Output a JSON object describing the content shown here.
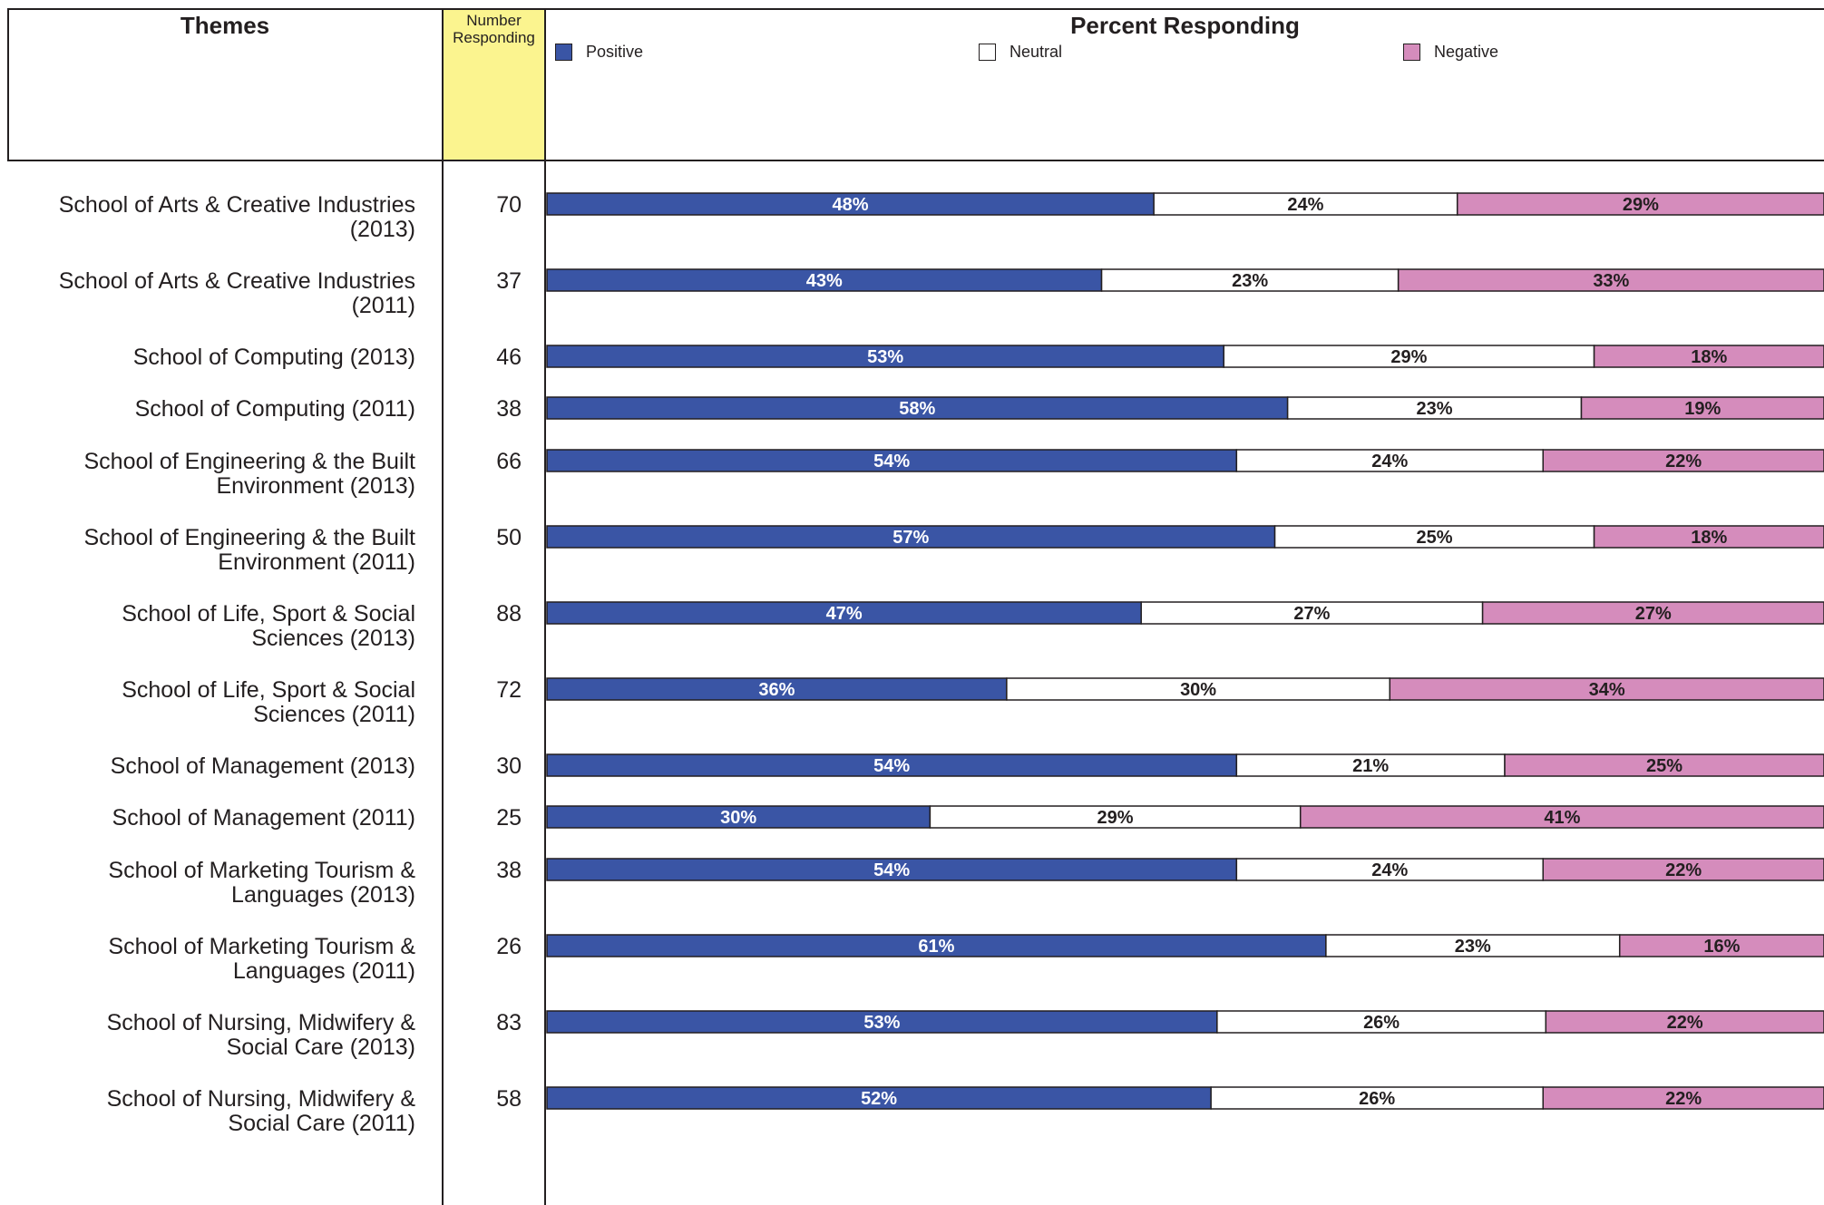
{
  "header": {
    "themes_label": "Themes",
    "number_label_line1": "Number",
    "number_label_line2": "Responding",
    "percent_label": "Percent Responding"
  },
  "legend": [
    {
      "label": "Positive",
      "color": "#3a55a5"
    },
    {
      "label": "Neutral",
      "color": "#ffffff"
    },
    {
      "label": "Negative",
      "color": "#d58cbc"
    }
  ],
  "chart_data": {
    "type": "bar",
    "orientation": "horizontal",
    "stacked": true,
    "title": "Percent Responding",
    "categories": [
      "School of Arts & Creative Industries (2013)",
      "School of Arts & Creative Industries (2011)",
      "School of Computing (2013)",
      "School of Computing (2011)",
      "School of Engineering & the Built Environment (2013)",
      "School of Engineering & the Built Environment (2011)",
      "School of Life, Sport & Social Sciences (2013)",
      "School of Life, Sport & Social Sciences (2011)",
      "School of Management (2013)",
      "School of Management (2011)",
      "School of Marketing Tourism & Languages (2013)",
      "School of Marketing Tourism & Languages (2011)",
      "School of Nursing, Midwifery & Social Care (2013)",
      "School of Nursing, Midwifery & Social Care (2011)"
    ],
    "number_responding": [
      70,
      37,
      46,
      38,
      66,
      50,
      88,
      72,
      30,
      25,
      38,
      26,
      83,
      58
    ],
    "series": [
      {
        "name": "Positive",
        "color": "#3a55a5",
        "values": [
          48,
          43,
          53,
          58,
          54,
          57,
          47,
          36,
          54,
          30,
          54,
          61,
          53,
          52
        ]
      },
      {
        "name": "Neutral",
        "color": "#ffffff",
        "values": [
          24,
          23,
          29,
          23,
          24,
          25,
          27,
          30,
          21,
          29,
          24,
          23,
          26,
          26
        ]
      },
      {
        "name": "Negative",
        "color": "#d58cbc",
        "values": [
          29,
          33,
          18,
          19,
          22,
          18,
          27,
          34,
          25,
          41,
          22,
          16,
          22,
          22
        ]
      }
    ],
    "xlim": [
      0,
      100
    ]
  },
  "rows": [
    {
      "label_line1": "School of Arts & Creative Industries",
      "label_line2": "(2013)",
      "count": "70"
    },
    {
      "label_line1": "School of Arts & Creative Industries",
      "label_line2": "(2011)",
      "count": "37"
    },
    {
      "label_line1": "School of Computing (2013)",
      "label_line2": "",
      "count": "46"
    },
    {
      "label_line1": "School of Computing (2011)",
      "label_line2": "",
      "count": "38"
    },
    {
      "label_line1": "School of Engineering & the Built",
      "label_line2": "Environment (2013)",
      "count": "66"
    },
    {
      "label_line1": "School of Engineering & the Built",
      "label_line2": "Environment (2011)",
      "count": "50"
    },
    {
      "label_line1": "School of Life, Sport & Social",
      "label_line2": "Sciences (2013)",
      "count": "88"
    },
    {
      "label_line1": "School of Life, Sport & Social",
      "label_line2": "Sciences (2011)",
      "count": "72"
    },
    {
      "label_line1": "School of Management (2013)",
      "label_line2": "",
      "count": "30"
    },
    {
      "label_line1": "School of Management (2011)",
      "label_line2": "",
      "count": "25"
    },
    {
      "label_line1": "School of Marketing Tourism &",
      "label_line2": "Languages (2013)",
      "count": "38"
    },
    {
      "label_line1": "School of Marketing Tourism &",
      "label_line2": "Languages (2011)",
      "count": "26"
    },
    {
      "label_line1": "School of Nursing, Midwifery &",
      "label_line2": "Social Care (2013)",
      "count": "83"
    },
    {
      "label_line1": "School of Nursing, Midwifery &",
      "label_line2": "Social Care (2011)",
      "count": "58"
    }
  ]
}
